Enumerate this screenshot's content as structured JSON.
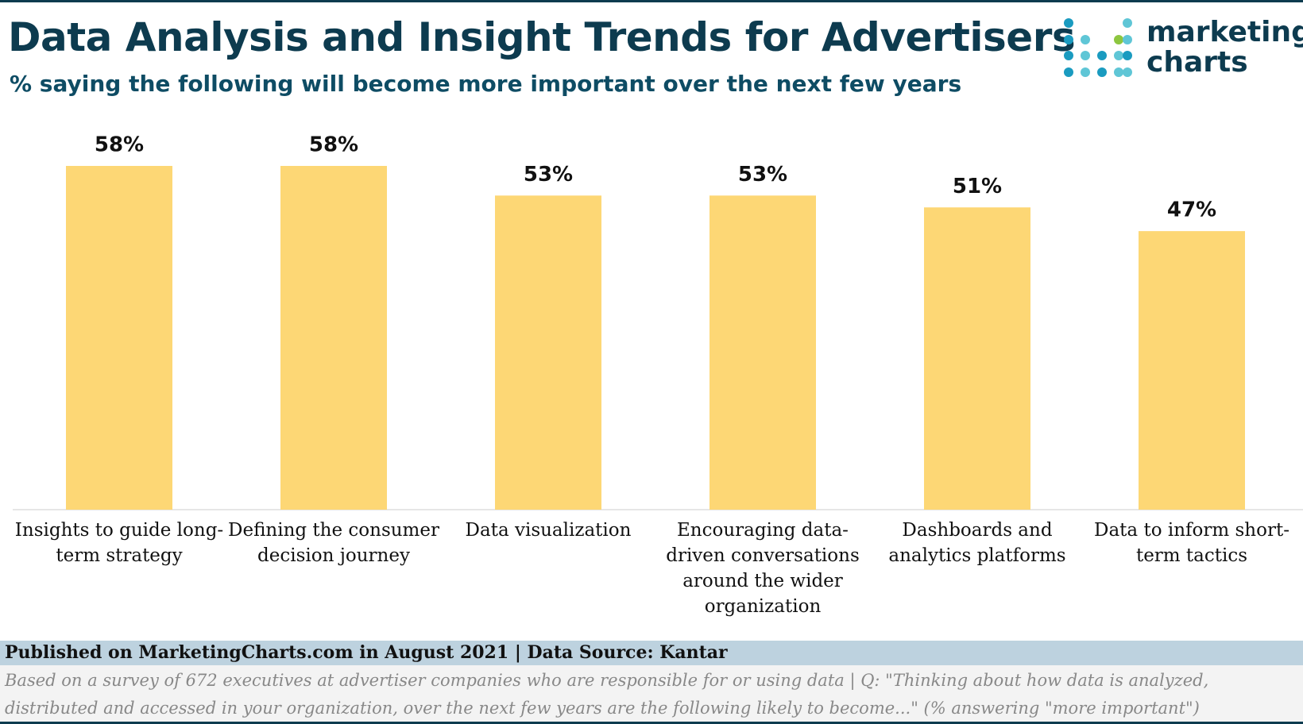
{
  "chart_data": {
    "type": "bar",
    "title": "Data Analysis and Insight Trends for Advertisers",
    "subtitle": "% saying the following will become more important over the next few years",
    "categories": [
      "Insights to guide long-term strategy",
      "Defining the consumer decision journey",
      "Data visualization",
      "Encouraging data-driven conversations around the wider organization",
      "Dashboards and analytics platforms",
      "Data to inform short-term tactics"
    ],
    "values": [
      58,
      58,
      53,
      53,
      51,
      47
    ],
    "value_labels": [
      "58%",
      "58%",
      "53%",
      "53%",
      "51%",
      "47%"
    ],
    "color": "#fdd775",
    "source": "Published on MarketingCharts.com in August 2021 | Data Source: Kantar",
    "note": "Based on a survey of 672 executives at advertiser companies who are responsible for or using data | Q: \"Thinking about how data is analyzed, distributed and accessed in your organization, over the next few years are the following likely to become...\" (% answering \"more important\")"
  },
  "logo": {
    "line1": "marketing",
    "line2": "charts"
  }
}
